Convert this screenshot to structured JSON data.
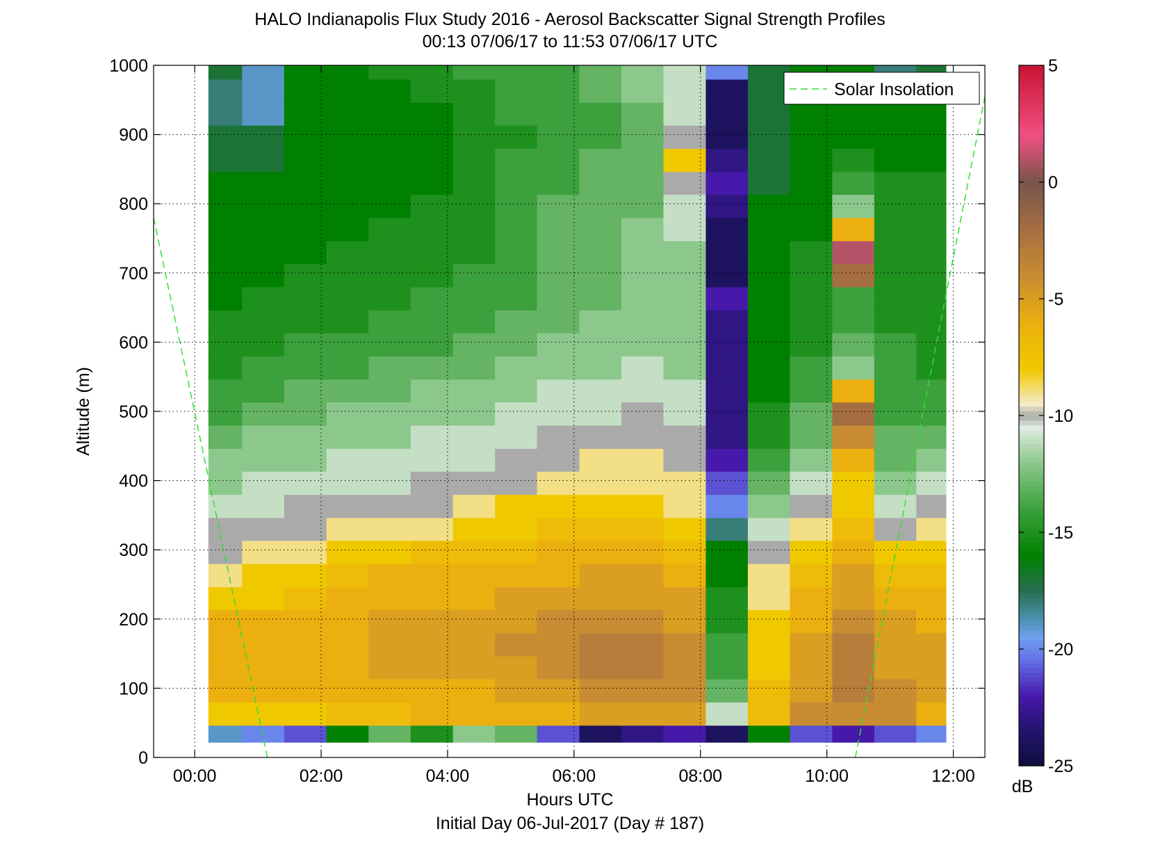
{
  "chart_data": {
    "type": "heatmap",
    "title": "HALO Indianapolis Flux Study 2016 - Aerosol Backscatter Signal Strength Profiles",
    "subtitle": "00:13 07/06/17 to 11:53 07/06/17  UTC",
    "xlabel": "Hours UTC",
    "xlabel2": "Initial Day 06-Jul-2017 (Day # 187)",
    "ylabel": "Altitude (m)",
    "xlim": [
      -0.65,
      12.5
    ],
    "ylim": [
      0,
      1000
    ],
    "x_ticks": [
      0,
      2,
      4,
      6,
      8,
      10,
      12
    ],
    "x_tick_labels": [
      "00:00",
      "02:00",
      "04:00",
      "06:00",
      "08:00",
      "10:00",
      "12:00"
    ],
    "y_ticks": [
      0,
      100,
      200,
      300,
      400,
      500,
      600,
      700,
      800,
      900,
      1000
    ],
    "y_tick_labels": [
      "0",
      "100",
      "200",
      "300",
      "400",
      "500",
      "600",
      "700",
      "800",
      "900",
      "1000"
    ],
    "grid": true,
    "colorbar": {
      "label": "dB",
      "range": [
        -25,
        5
      ],
      "ticks": [
        5,
        0,
        -5,
        -10,
        -15,
        -20,
        -25
      ],
      "tick_labels": [
        "5",
        "0",
        "-5",
        "-10",
        "-15",
        "-20",
        "-25"
      ]
    },
    "legend": {
      "position": "top-right",
      "entries": [
        {
          "label": "Solar Insolation",
          "color": "#33dd33",
          "style": "dashed"
        }
      ]
    },
    "x_start": 0.2167,
    "x_end": 11.8833,
    "altitude_bins_m": [
      30,
      63,
      97,
      130,
      163,
      197,
      230,
      263,
      297,
      330,
      363,
      397,
      430,
      463,
      497,
      530,
      563,
      597,
      630,
      663,
      697,
      730,
      763,
      797,
      830,
      863,
      897,
      930,
      963,
      997
    ],
    "columns": [
      {
        "t": 0.42,
        "db": [
          -19,
          -8,
          -6,
          -6,
          -6,
          -6,
          -8,
          -9,
          -10,
          -10,
          -11,
          -12,
          -12,
          -13,
          -14,
          -14,
          -15,
          -15,
          -15,
          -16,
          -16,
          -16,
          -16,
          -16,
          -16,
          -17,
          -17,
          -18,
          -18,
          -17
        ]
      },
      {
        "t": 1.08,
        "db": [
          -20,
          -8,
          -6,
          -6,
          -6,
          -6,
          -8,
          -8,
          -9,
          -10,
          -11,
          -11,
          -12,
          -12,
          -13,
          -14,
          -14,
          -15,
          -15,
          -15,
          -16,
          -16,
          -16,
          -16,
          -16,
          -17,
          -17,
          -19,
          -19,
          -19
        ]
      },
      {
        "t": 1.75,
        "db": [
          -21,
          -8,
          -6,
          -6,
          -6,
          -6,
          -7,
          -8,
          -9,
          -10,
          -10,
          -11,
          -12,
          -12,
          -13,
          -13,
          -14,
          -14,
          -15,
          -15,
          -15,
          -16,
          -16,
          -16,
          -16,
          -16,
          -16,
          -16,
          -16,
          -16
        ]
      },
      {
        "t": 2.42,
        "db": [
          -16,
          -7,
          -6,
          -6,
          -6,
          -6,
          -6,
          -7,
          -8,
          -9,
          -10,
          -11,
          -11,
          -12,
          -12,
          -13,
          -14,
          -14,
          -15,
          -15,
          -15,
          -15,
          -16,
          -16,
          -16,
          -16,
          -16,
          -16,
          -16,
          -16
        ]
      },
      {
        "t": 3.08,
        "db": [
          -13,
          -7,
          -6,
          -5,
          -5,
          -5,
          -6,
          -6,
          -8,
          -9,
          -10,
          -11,
          -11,
          -12,
          -12,
          -13,
          -13,
          -14,
          -14,
          -15,
          -15,
          -15,
          -15,
          -16,
          -16,
          -16,
          -16,
          -16,
          -16,
          -15
        ]
      },
      {
        "t": 3.75,
        "db": [
          -15,
          -6,
          -6,
          -5,
          -5,
          -5,
          -6,
          -6,
          -7,
          -9,
          -10,
          -10,
          -11,
          -11,
          -12,
          -12,
          -13,
          -14,
          -14,
          -14,
          -15,
          -15,
          -15,
          -15,
          -16,
          -16,
          -16,
          -16,
          -15,
          -15
        ]
      },
      {
        "t": 4.42,
        "db": [
          -12,
          -6,
          -6,
          -5,
          -5,
          -5,
          -6,
          -6,
          -7,
          -8,
          -9,
          -10,
          -11,
          -11,
          -12,
          -12,
          -13,
          -13,
          -14,
          -14,
          -14,
          -15,
          -15,
          -15,
          -15,
          -15,
          -15,
          -15,
          -15,
          -14
        ]
      },
      {
        "t": 5.08,
        "db": [
          -13,
          -6,
          -5,
          -5,
          -4,
          -5,
          -5,
          -6,
          -7,
          -8,
          -8,
          -10,
          -10,
          -11,
          -11,
          -12,
          -12,
          -13,
          -13,
          -14,
          -14,
          -14,
          -14,
          -14,
          -14,
          -14,
          -15,
          -14,
          -14,
          -14
        ]
      },
      {
        "t": 5.75,
        "db": [
          -21,
          -6,
          -5,
          -4,
          -4,
          -4,
          -5,
          -6,
          -6,
          -7,
          -8,
          -9,
          -10,
          -10,
          -11,
          -11,
          -12,
          -12,
          -13,
          -13,
          -13,
          -13,
          -13,
          -13,
          -14,
          -14,
          -14,
          -14,
          -14,
          -14
        ]
      },
      {
        "t": 6.42,
        "db": [
          -24,
          -5,
          -4,
          -3,
          -3,
          -4,
          -5,
          -5,
          -6,
          -7,
          -8,
          -9,
          -9,
          -10,
          -11,
          -11,
          -12,
          -12,
          -12,
          -13,
          -13,
          -13,
          -13,
          -13,
          -13,
          -13,
          -14,
          -14,
          -13,
          -13
        ]
      },
      {
        "t": 7.08,
        "db": [
          -23,
          -5,
          -4,
          -3,
          -3,
          -4,
          -5,
          -5,
          -6,
          -7,
          -8,
          -9,
          -9,
          -10,
          -10,
          -11,
          -11,
          -12,
          -12,
          -12,
          -12,
          -12,
          -12,
          -13,
          -13,
          -13,
          -13,
          -13,
          -12,
          -12
        ]
      },
      {
        "t": 7.75,
        "db": [
          -22,
          -5,
          -4,
          -4,
          -4,
          -5,
          -5,
          -6,
          -7,
          -8,
          -9,
          -9,
          -10,
          -10,
          -11,
          -11,
          -12,
          -12,
          -12,
          -12,
          -12,
          -12,
          -11,
          -11,
          -10,
          -8,
          -10,
          -11,
          -11,
          -11
        ]
      },
      {
        "t": 8.42,
        "db": [
          -24,
          -11,
          -13,
          -14,
          -14,
          -15,
          -15,
          -16,
          -16,
          -18,
          -20,
          -21,
          -22,
          -23,
          -23,
          -23,
          -23,
          -23,
          -23,
          -22,
          -24,
          -24,
          -24,
          -23,
          -22,
          -23,
          -24,
          -24,
          -24,
          -20
        ]
      },
      {
        "t": 9.08,
        "db": [
          -16,
          -7,
          -7,
          -8,
          -8,
          -8,
          -9,
          -9,
          -10,
          -11,
          -12,
          -13,
          -14,
          -15,
          -15,
          -16,
          -16,
          -16,
          -16,
          -16,
          -16,
          -16,
          -16,
          -16,
          -17,
          -17,
          -17,
          -17,
          -17,
          -17
        ]
      },
      {
        "t": 9.75,
        "db": [
          -21,
          -4,
          -5,
          -5,
          -5,
          -6,
          -6,
          -7,
          -8,
          -9,
          -10,
          -11,
          -12,
          -13,
          -13,
          -14,
          -14,
          -15,
          -15,
          -15,
          -15,
          -15,
          -16,
          -16,
          -16,
          -16,
          -16,
          -16,
          -16,
          -16
        ]
      },
      {
        "t": 10.42,
        "db": [
          -22,
          -4,
          -3,
          -3,
          -3,
          -4,
          -5,
          -5,
          -6,
          -7,
          -8,
          -8,
          -6,
          -4,
          -2,
          -6,
          -12,
          -13,
          -14,
          -14,
          -2,
          1,
          -6,
          -12,
          -14,
          -15,
          -16,
          -16,
          -16,
          -16
        ]
      },
      {
        "t": 11.08,
        "db": [
          -21,
          -4,
          -4,
          -5,
          -5,
          -5,
          -6,
          -7,
          -8,
          -10,
          -11,
          -12,
          -13,
          -13,
          -14,
          -14,
          -14,
          -14,
          -15,
          -15,
          -15,
          -15,
          -15,
          -15,
          -15,
          -16,
          -16,
          -16,
          -16,
          -18
        ]
      },
      {
        "t": 11.75,
        "db": [
          -20,
          -6,
          -5,
          -5,
          -5,
          -6,
          -6,
          -7,
          -8,
          -9,
          -10,
          -11,
          -12,
          -13,
          -14,
          -14,
          -15,
          -15,
          -15,
          -15,
          -15,
          -15,
          -15,
          -15,
          -15,
          -16,
          -16,
          -16,
          -16,
          -17
        ]
      }
    ],
    "solar_insolation_lines": [
      {
        "x": [
          -0.65,
          1.15
        ],
        "y": [
          780,
          0
        ]
      },
      {
        "x": [
          10.45,
          12.5
        ],
        "y": [
          0,
          955
        ]
      }
    ]
  }
}
